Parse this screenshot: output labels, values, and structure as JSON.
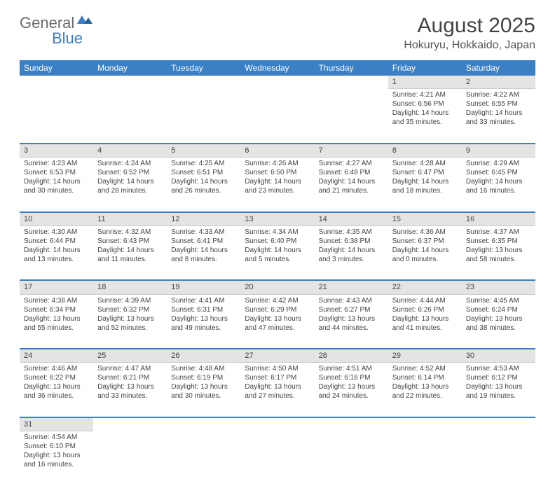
{
  "logo": {
    "general": "General",
    "blue": "Blue"
  },
  "header": {
    "month": "August 2025",
    "location": "Hokuryu, Hokkaido, Japan"
  },
  "dayNames": [
    "Sunday",
    "Monday",
    "Tuesday",
    "Wednesday",
    "Thursday",
    "Friday",
    "Saturday"
  ],
  "colors": {
    "brand": "#3b7fc4",
    "headerBg": "#3b7fc4",
    "dayBg": "#e4e4e4"
  },
  "weeks": [
    [
      null,
      null,
      null,
      null,
      null,
      {
        "n": "1",
        "sr": "Sunrise: 4:21 AM",
        "ss": "Sunset: 6:56 PM",
        "dl": "Daylight: 14 hours and 35 minutes."
      },
      {
        "n": "2",
        "sr": "Sunrise: 4:22 AM",
        "ss": "Sunset: 6:55 PM",
        "dl": "Daylight: 14 hours and 33 minutes."
      }
    ],
    [
      {
        "n": "3",
        "sr": "Sunrise: 4:23 AM",
        "ss": "Sunset: 6:53 PM",
        "dl": "Daylight: 14 hours and 30 minutes."
      },
      {
        "n": "4",
        "sr": "Sunrise: 4:24 AM",
        "ss": "Sunset: 6:52 PM",
        "dl": "Daylight: 14 hours and 28 minutes."
      },
      {
        "n": "5",
        "sr": "Sunrise: 4:25 AM",
        "ss": "Sunset: 6:51 PM",
        "dl": "Daylight: 14 hours and 26 minutes."
      },
      {
        "n": "6",
        "sr": "Sunrise: 4:26 AM",
        "ss": "Sunset: 6:50 PM",
        "dl": "Daylight: 14 hours and 23 minutes."
      },
      {
        "n": "7",
        "sr": "Sunrise: 4:27 AM",
        "ss": "Sunset: 6:48 PM",
        "dl": "Daylight: 14 hours and 21 minutes."
      },
      {
        "n": "8",
        "sr": "Sunrise: 4:28 AM",
        "ss": "Sunset: 6:47 PM",
        "dl": "Daylight: 14 hours and 18 minutes."
      },
      {
        "n": "9",
        "sr": "Sunrise: 4:29 AM",
        "ss": "Sunset: 6:45 PM",
        "dl": "Daylight: 14 hours and 16 minutes."
      }
    ],
    [
      {
        "n": "10",
        "sr": "Sunrise: 4:30 AM",
        "ss": "Sunset: 6:44 PM",
        "dl": "Daylight: 14 hours and 13 minutes."
      },
      {
        "n": "11",
        "sr": "Sunrise: 4:32 AM",
        "ss": "Sunset: 6:43 PM",
        "dl": "Daylight: 14 hours and 11 minutes."
      },
      {
        "n": "12",
        "sr": "Sunrise: 4:33 AM",
        "ss": "Sunset: 6:41 PM",
        "dl": "Daylight: 14 hours and 8 minutes."
      },
      {
        "n": "13",
        "sr": "Sunrise: 4:34 AM",
        "ss": "Sunset: 6:40 PM",
        "dl": "Daylight: 14 hours and 5 minutes."
      },
      {
        "n": "14",
        "sr": "Sunrise: 4:35 AM",
        "ss": "Sunset: 6:38 PM",
        "dl": "Daylight: 14 hours and 3 minutes."
      },
      {
        "n": "15",
        "sr": "Sunrise: 4:36 AM",
        "ss": "Sunset: 6:37 PM",
        "dl": "Daylight: 14 hours and 0 minutes."
      },
      {
        "n": "16",
        "sr": "Sunrise: 4:37 AM",
        "ss": "Sunset: 6:35 PM",
        "dl": "Daylight: 13 hours and 58 minutes."
      }
    ],
    [
      {
        "n": "17",
        "sr": "Sunrise: 4:38 AM",
        "ss": "Sunset: 6:34 PM",
        "dl": "Daylight: 13 hours and 55 minutes."
      },
      {
        "n": "18",
        "sr": "Sunrise: 4:39 AM",
        "ss": "Sunset: 6:32 PM",
        "dl": "Daylight: 13 hours and 52 minutes."
      },
      {
        "n": "19",
        "sr": "Sunrise: 4:41 AM",
        "ss": "Sunset: 6:31 PM",
        "dl": "Daylight: 13 hours and 49 minutes."
      },
      {
        "n": "20",
        "sr": "Sunrise: 4:42 AM",
        "ss": "Sunset: 6:29 PM",
        "dl": "Daylight: 13 hours and 47 minutes."
      },
      {
        "n": "21",
        "sr": "Sunrise: 4:43 AM",
        "ss": "Sunset: 6:27 PM",
        "dl": "Daylight: 13 hours and 44 minutes."
      },
      {
        "n": "22",
        "sr": "Sunrise: 4:44 AM",
        "ss": "Sunset: 6:26 PM",
        "dl": "Daylight: 13 hours and 41 minutes."
      },
      {
        "n": "23",
        "sr": "Sunrise: 4:45 AM",
        "ss": "Sunset: 6:24 PM",
        "dl": "Daylight: 13 hours and 38 minutes."
      }
    ],
    [
      {
        "n": "24",
        "sr": "Sunrise: 4:46 AM",
        "ss": "Sunset: 6:22 PM",
        "dl": "Daylight: 13 hours and 36 minutes."
      },
      {
        "n": "25",
        "sr": "Sunrise: 4:47 AM",
        "ss": "Sunset: 6:21 PM",
        "dl": "Daylight: 13 hours and 33 minutes."
      },
      {
        "n": "26",
        "sr": "Sunrise: 4:48 AM",
        "ss": "Sunset: 6:19 PM",
        "dl": "Daylight: 13 hours and 30 minutes."
      },
      {
        "n": "27",
        "sr": "Sunrise: 4:50 AM",
        "ss": "Sunset: 6:17 PM",
        "dl": "Daylight: 13 hours and 27 minutes."
      },
      {
        "n": "28",
        "sr": "Sunrise: 4:51 AM",
        "ss": "Sunset: 6:16 PM",
        "dl": "Daylight: 13 hours and 24 minutes."
      },
      {
        "n": "29",
        "sr": "Sunrise: 4:52 AM",
        "ss": "Sunset: 6:14 PM",
        "dl": "Daylight: 13 hours and 22 minutes."
      },
      {
        "n": "30",
        "sr": "Sunrise: 4:53 AM",
        "ss": "Sunset: 6:12 PM",
        "dl": "Daylight: 13 hours and 19 minutes."
      }
    ],
    [
      {
        "n": "31",
        "sr": "Sunrise: 4:54 AM",
        "ss": "Sunset: 6:10 PM",
        "dl": "Daylight: 13 hours and 16 minutes."
      },
      null,
      null,
      null,
      null,
      null,
      null
    ]
  ]
}
